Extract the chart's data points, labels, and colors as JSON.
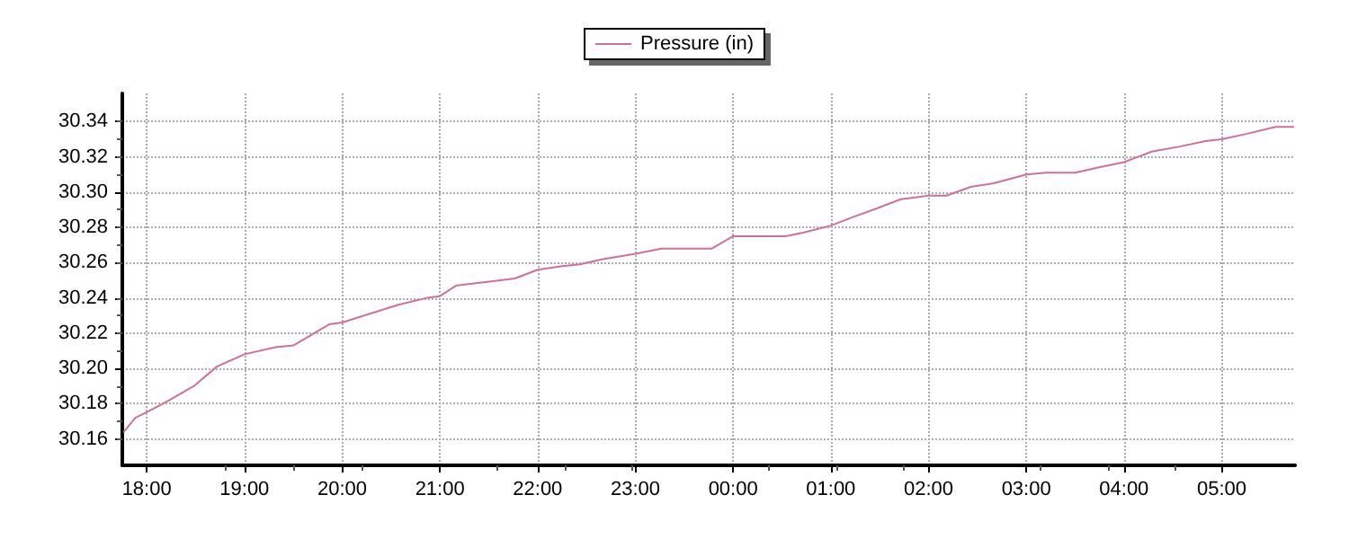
{
  "chart_data": {
    "type": "line",
    "x": [
      "--01-01T17:46",
      "--01-01T17:53",
      "--01-01T18:04",
      "--01-01T18:14",
      "--01-01T18:29",
      "--01-01T18:43",
      "--01-01T19:00",
      "--01-01T19:19",
      "--01-01T19:30",
      "--01-01T19:41",
      "--01-01T19:52",
      "--01-01T20:00",
      "--01-01T20:17",
      "--01-01T20:34",
      "--01-01T20:52",
      "--01-01T21:00",
      "--01-01T21:10",
      "--01-01T21:28",
      "--01-01T21:46",
      "--01-01T22:00",
      "--01-01T22:15",
      "--01-01T22:26",
      "--01-01T22:40",
      "--01-01T23:00",
      "--01-01T23:16",
      "--01-01T23:34",
      "--01-01T23:47",
      "--01-02T00:00",
      "--01-02T00:14",
      "--01-02T00:32",
      "--01-02T00:43",
      "--01-02T01:00",
      "--01-02T01:14",
      "--01-02T01:29",
      "--01-02T01:43",
      "--01-02T02:00",
      "--01-02T02:11",
      "--01-02T02:26",
      "--01-02T02:40",
      "--01-02T03:00",
      "--01-02T03:12",
      "--01-02T03:30",
      "--01-02T03:44",
      "--01-02T04:00",
      "--01-02T04:17",
      "--01-02T04:35",
      "--01-02T04:50",
      "--01-02T05:00",
      "--01-02T05:15",
      "--01-02T05:33",
      "--01-02T05:44"
    ],
    "series": [
      {
        "name": "Pressure (in)",
        "color": "#d0709a",
        "values": [
          30.164,
          30.172,
          30.177,
          30.182,
          30.19,
          30.201,
          30.208,
          30.212,
          30.213,
          30.219,
          30.225,
          30.226,
          30.231,
          30.236,
          30.24,
          30.241,
          30.247,
          30.249,
          30.251,
          30.256,
          30.258,
          30.259,
          30.262,
          30.265,
          30.268,
          30.268,
          30.268,
          30.275,
          30.275,
          30.275,
          30.277,
          30.281,
          30.286,
          30.291,
          30.296,
          30.298,
          30.298,
          30.303,
          30.305,
          30.31,
          30.311,
          30.311,
          30.314,
          30.317,
          30.323,
          30.326,
          30.329,
          30.33,
          30.333,
          30.337,
          30.337
        ]
      }
    ],
    "xlim": [
      "--01-01T17:45",
      "--01-02T05:45"
    ],
    "xticks": [
      {
        "value": "--01-01T18:00",
        "label": "18:00"
      },
      {
        "value": "--01-01T19:00",
        "label": "19:00"
      },
      {
        "value": "--01-01T20:00",
        "label": "20:00"
      },
      {
        "value": "--01-01T21:00",
        "label": "21:00"
      },
      {
        "value": "--01-01T22:00",
        "label": "22:00"
      },
      {
        "value": "--01-01T23:00",
        "label": "23:00"
      },
      {
        "value": "--01-02T00:00",
        "label": "00:00"
      },
      {
        "value": "--01-02T01:00",
        "label": "01:00"
      },
      {
        "value": "--01-02T02:00",
        "label": "02:00"
      },
      {
        "value": "--01-02T03:00",
        "label": "03:00"
      },
      {
        "value": "--01-02T04:00",
        "label": "04:00"
      },
      {
        "value": "--01-02T05:00",
        "label": "05:00"
      }
    ],
    "ylim": [
      30.145,
      30.356
    ],
    "yticks": [
      {
        "value": 30.16,
        "label": "30.16"
      },
      {
        "value": 30.18,
        "label": "30.18"
      },
      {
        "value": 30.2,
        "label": "30.20"
      },
      {
        "value": 30.22,
        "label": "30.22"
      },
      {
        "value": 30.24,
        "label": "30.24"
      },
      {
        "value": 30.26,
        "label": "30.26"
      },
      {
        "value": 30.28,
        "label": "30.28"
      },
      {
        "value": 30.3,
        "label": "30.30"
      },
      {
        "value": 30.32,
        "label": "30.32"
      },
      {
        "value": 30.34,
        "label": "30.34"
      }
    ],
    "grid": true,
    "legend": "top",
    "marker": "none",
    "line_style": "solid"
  }
}
